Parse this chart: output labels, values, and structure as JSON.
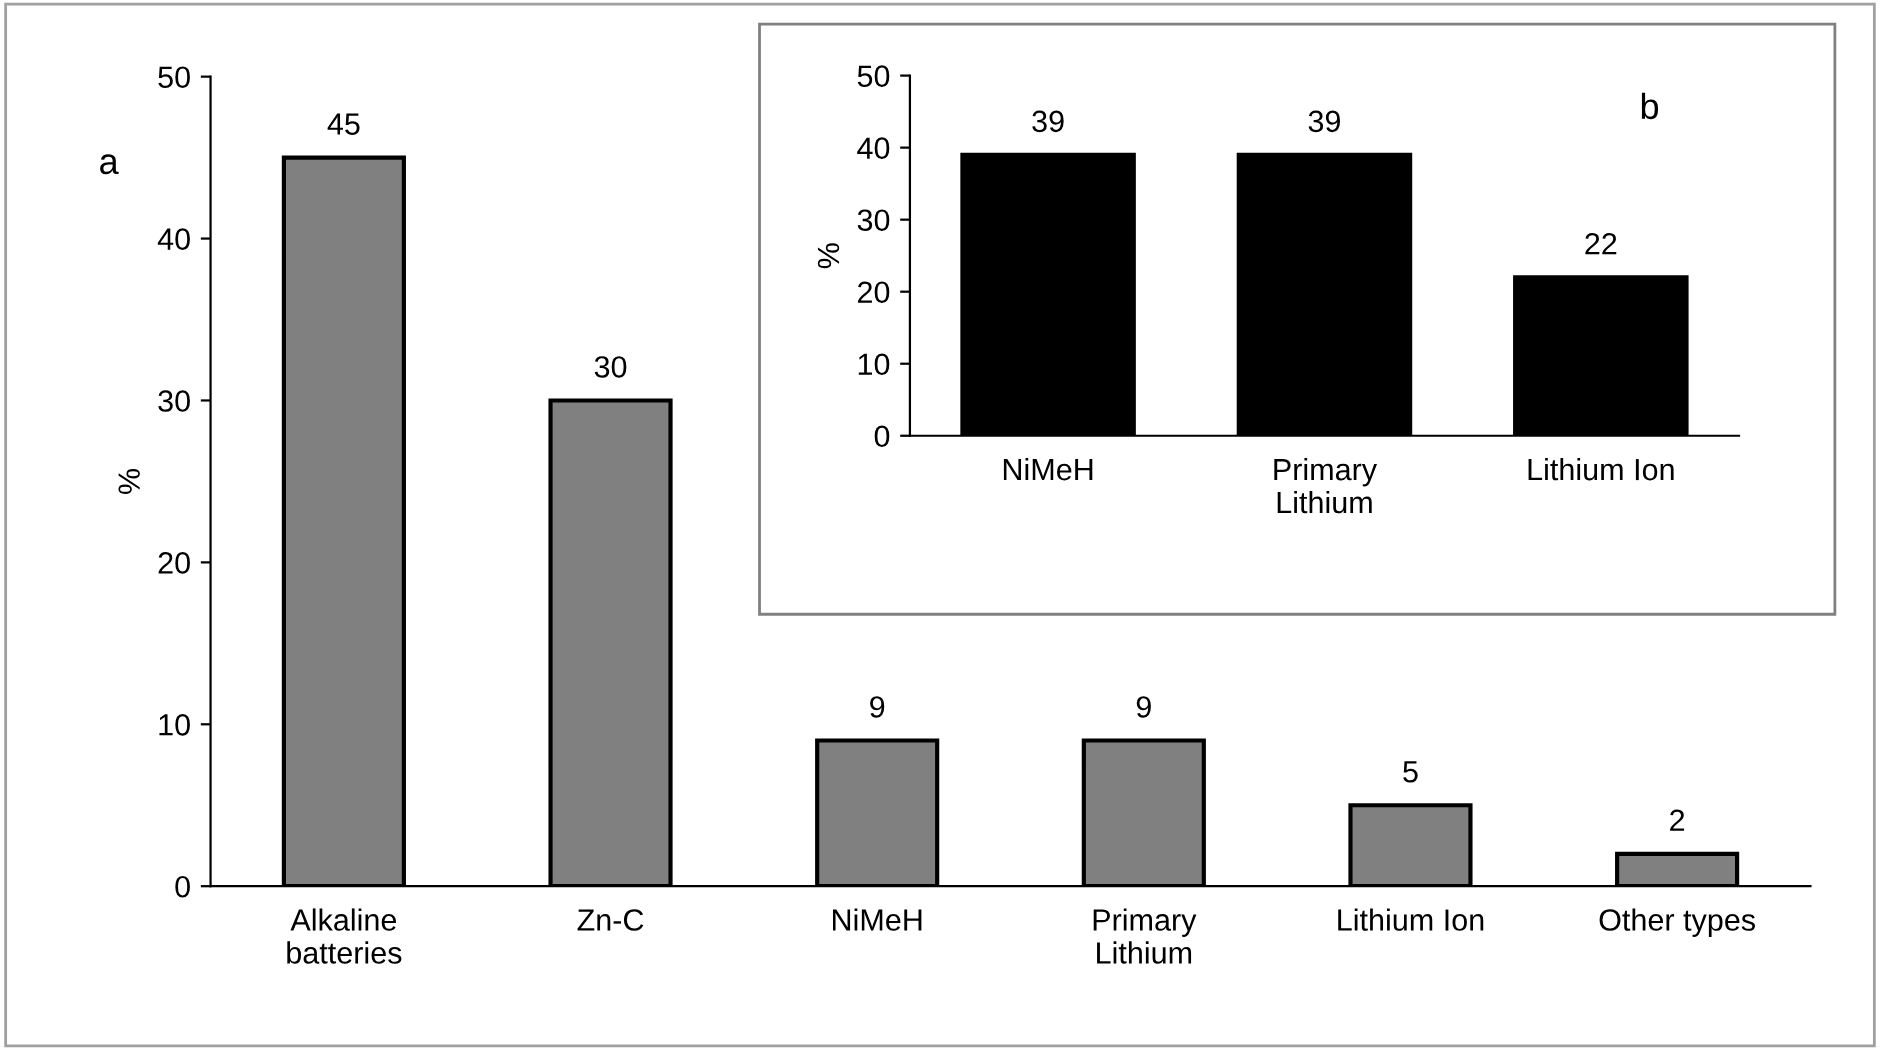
{
  "chart_data": [
    {
      "type": "bar",
      "categories": [
        "Alkaline\nbatteries",
        "Zn-C",
        "NiMeH",
        "Primary\nLithium",
        "Lithium Ion",
        "Other types"
      ],
      "values": [
        45,
        30,
        9,
        9,
        5,
        2
      ],
      "color": "#808080",
      "ylim": [
        0,
        50
      ],
      "yticks": [
        0,
        10,
        20,
        30,
        40,
        50
      ],
      "ylabel": "%",
      "data_labels": true,
      "annotations": [
        "a"
      ]
    },
    {
      "type": "bar",
      "categories": [
        "NiMeH",
        "Primary\nLithium",
        "Lithium Ion"
      ],
      "values": [
        39,
        39,
        22
      ],
      "color": "#000000",
      "ylim": [
        0,
        50
      ],
      "yticks": [
        0,
        10,
        20,
        30,
        40,
        50
      ],
      "ylabel": "%",
      "data_labels": true,
      "annotations": [
        "b"
      ]
    }
  ]
}
